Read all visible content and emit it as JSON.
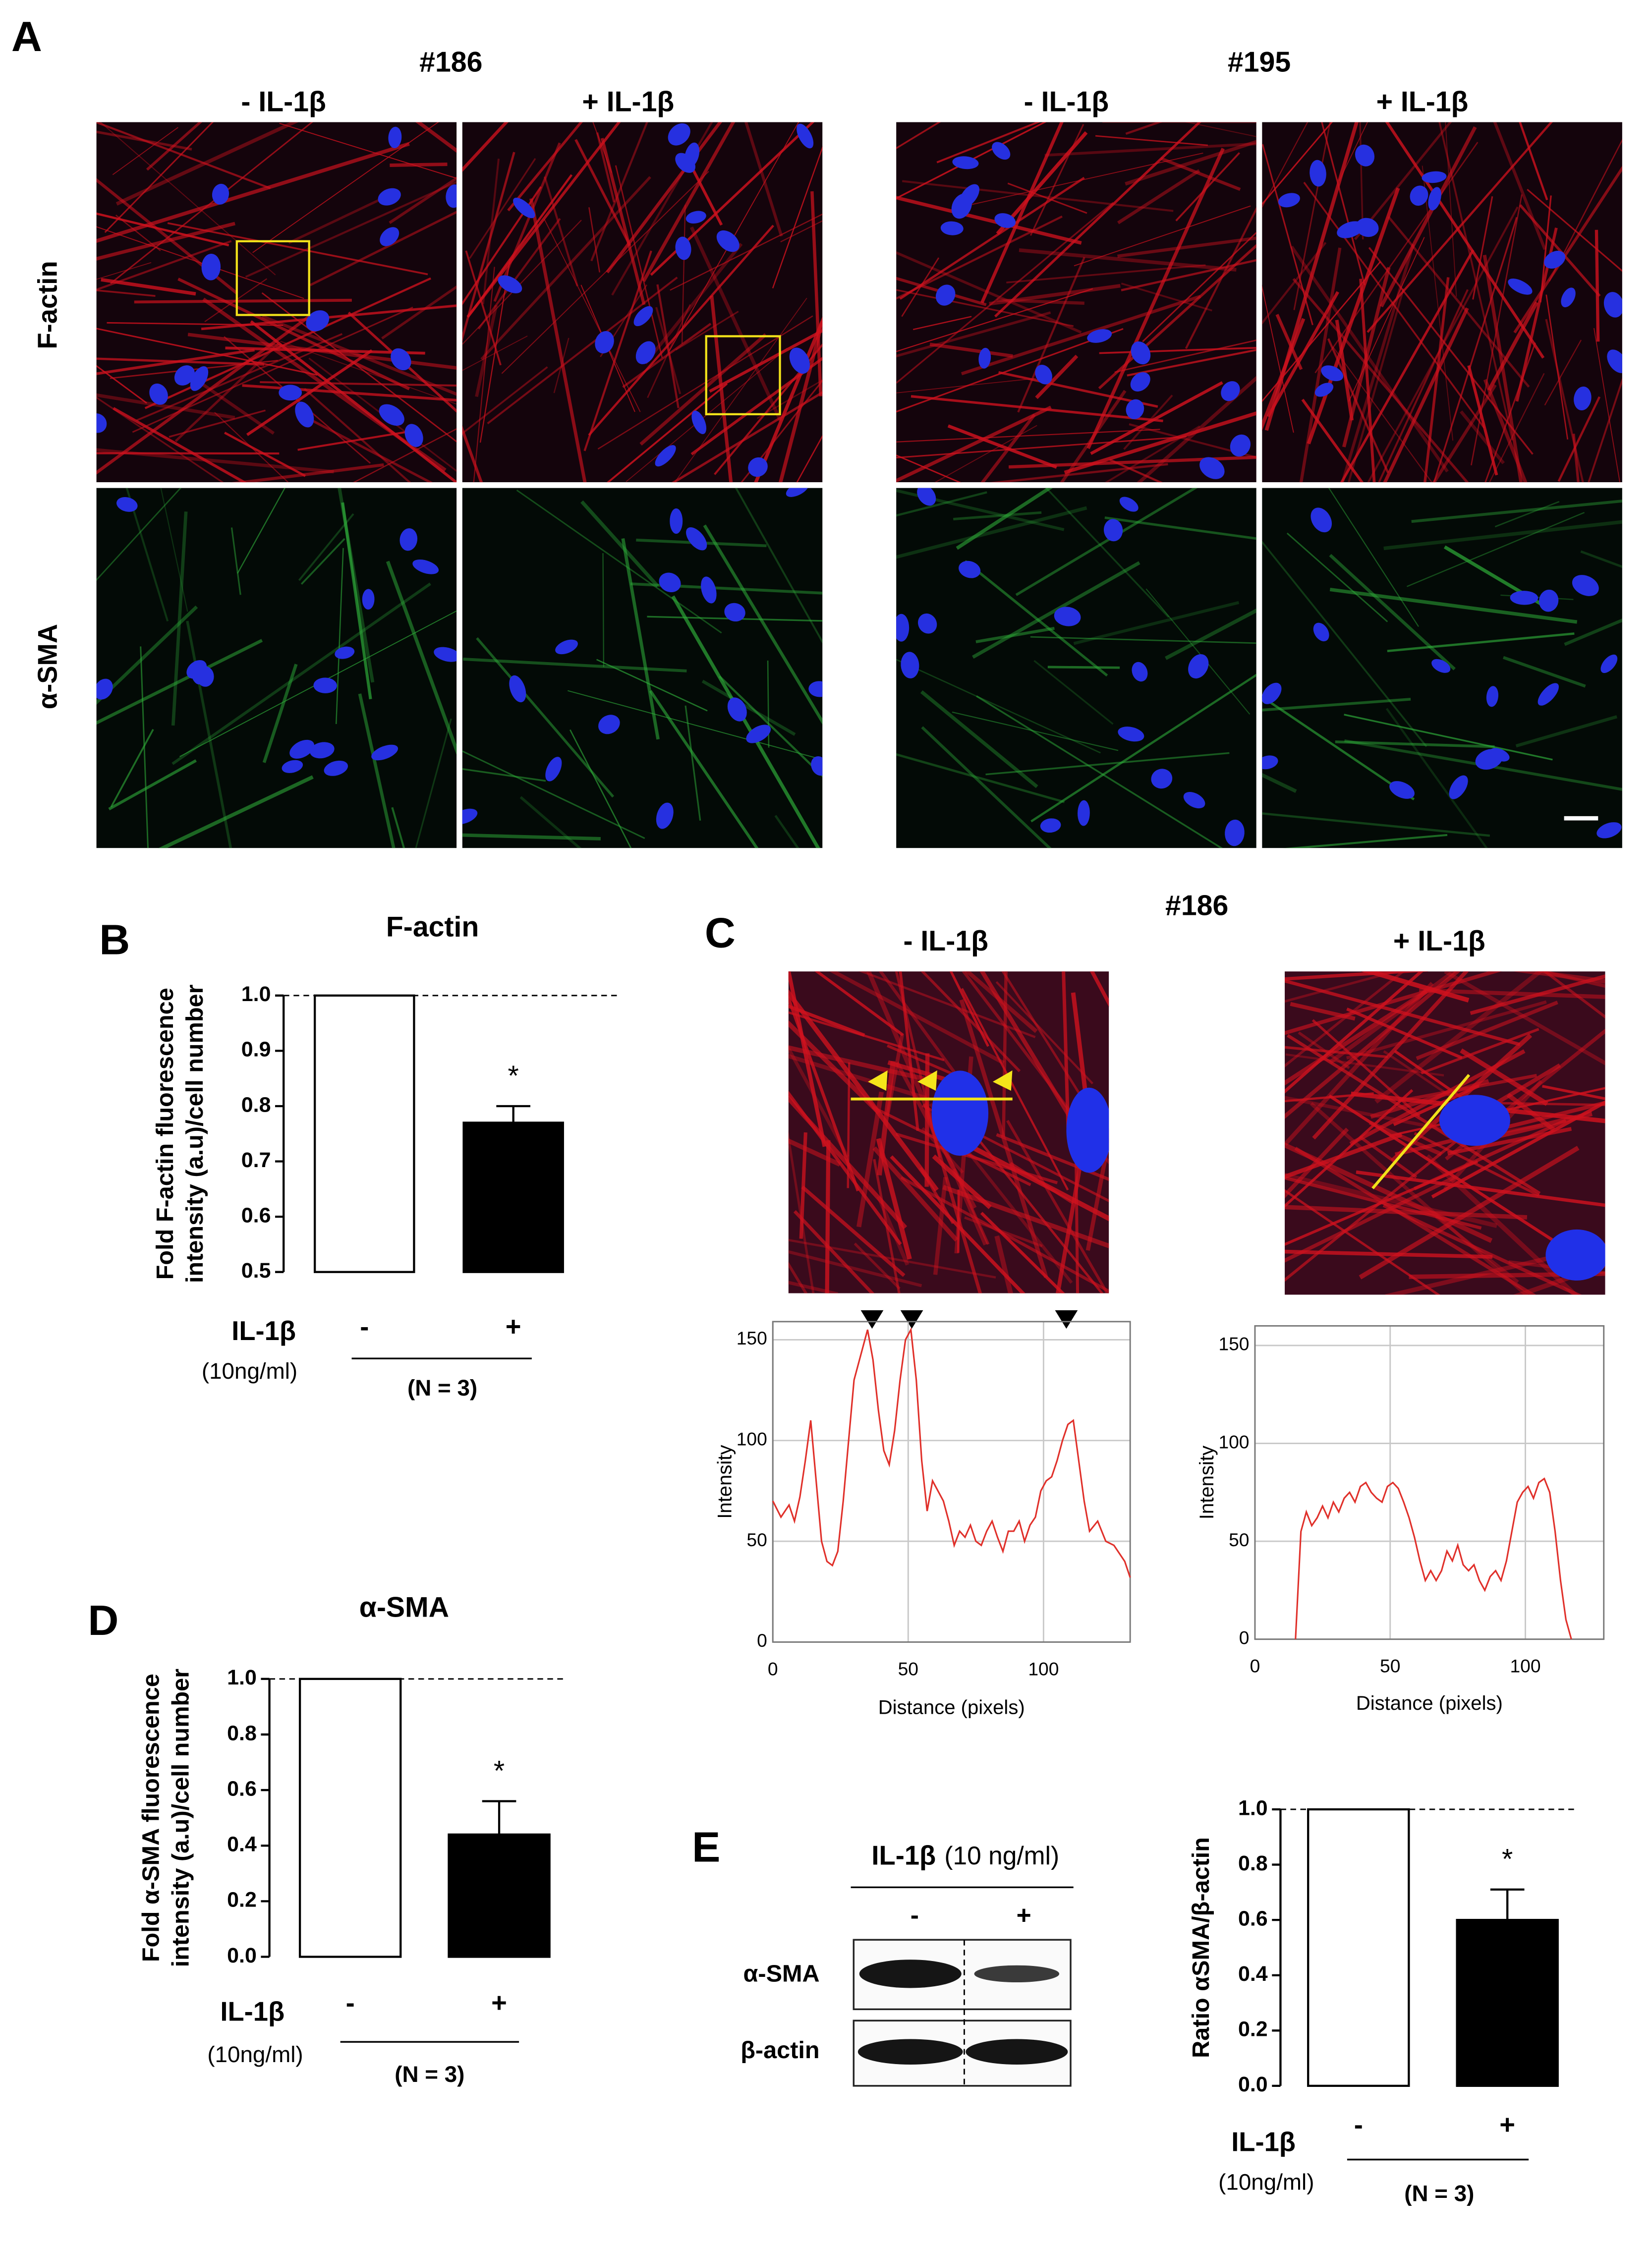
{
  "panel_a": {
    "letter": "A",
    "groups": [
      {
        "title": "#186",
        "conditions": [
          "- IL-1β",
          "+ IL-1β"
        ]
      },
      {
        "title": "#195",
        "conditions": [
          "- IL-1β",
          "+ IL-1β"
        ]
      }
    ],
    "stains": [
      "F-actin",
      "α-SMA"
    ]
  },
  "panel_c": {
    "letter": "C",
    "title": "#186",
    "conditions": [
      "- IL-1β",
      "+ IL-1β"
    ]
  },
  "panel_e_blot": {
    "letter": "E",
    "treatment": "IL-1β",
    "dose": "(10 ng/ml)",
    "lanes": [
      "-",
      "+"
    ],
    "proteins": [
      "α-SMA",
      "β-actin"
    ]
  },
  "chart_data": [
    {
      "type": "bar",
      "panel": "B",
      "title": "F-actin",
      "ylabel": [
        "Fold F-actin fluorescence",
        "intensity (a.u)/cell number"
      ],
      "categories": [
        "-",
        "+"
      ],
      "values": [
        1,
        0.77
      ],
      "errors": [
        null,
        0.03
      ],
      "significance_labels": [
        null,
        "*"
      ],
      "colors": [
        "#ffffff",
        "#000000"
      ],
      "ylim": [
        0.5,
        1
      ],
      "yticks": [
        0.5,
        0.6,
        0.7,
        0.8,
        0.9,
        {
          "value": 1,
          "label": "1.0"
        }
      ],
      "reference_line": 1,
      "treatment": "IL-1β",
      "dose": "(10ng/ml)",
      "n_label": "(N = 3)"
    },
    {
      "type": "bar",
      "panel": "D",
      "title": "α-SMA",
      "ylabel": [
        "Fold α-SMA fluorescence",
        "intensity (a.u)/cell number"
      ],
      "categories": [
        "-",
        "+"
      ],
      "values": [
        1,
        0.44
      ],
      "errors": [
        null,
        0.12
      ],
      "significance_labels": [
        null,
        "*"
      ],
      "colors": [
        "#ffffff",
        "#000000"
      ],
      "ylim": [
        0,
        1
      ],
      "yticks": [
        {
          "value": 0,
          "label": "0.0"
        },
        0.2,
        0.4,
        0.6,
        0.8,
        {
          "value": 1,
          "label": "1.0"
        }
      ],
      "reference_line": 1,
      "treatment": "IL-1β",
      "dose": "(10ng/ml)",
      "n_label": "(N = 3)"
    },
    {
      "type": "bar",
      "ylabel": [
        "Ratio αSMA/β-actin"
      ],
      "categories": [
        "-",
        "+"
      ],
      "values": [
        1,
        0.6
      ],
      "errors": [
        null,
        0.11
      ],
      "significance_labels": [
        null,
        "*"
      ],
      "colors": [
        "#ffffff",
        "#000000"
      ],
      "ylim": [
        0,
        1
      ],
      "yticks": [
        {
          "value": 0,
          "label": "0.0"
        },
        0.2,
        0.4,
        0.6,
        0.8,
        {
          "value": 1,
          "label": "1.0"
        }
      ],
      "reference_line": 1,
      "treatment": "IL-1β",
      "dose": "(10ng/ml)",
      "n_label": "(N = 3)"
    },
    {
      "type": "line",
      "xlabel": "Distance (pixels)",
      "ylabel": "Intensity",
      "x": [
        0,
        3,
        6,
        8,
        10,
        12,
        14,
        16,
        18,
        20,
        22,
        24,
        26,
        28,
        30,
        33,
        35,
        37,
        39,
        41,
        43,
        45,
        47,
        49,
        51,
        53,
        55,
        57,
        59,
        61,
        63,
        65,
        67,
        69,
        71,
        73,
        75,
        77,
        79,
        81,
        83,
        85,
        87,
        89,
        91,
        93,
        95,
        97,
        99,
        101,
        103,
        105,
        107,
        109,
        111,
        113,
        115,
        117,
        120,
        123,
        126,
        130,
        132
      ],
      "series": [
        {
          "color": "#e0302a",
          "values": [
            70,
            62,
            68,
            60,
            72,
            90,
            110,
            80,
            50,
            40,
            38,
            45,
            70,
            100,
            130,
            145,
            155,
            140,
            115,
            95,
            88,
            105,
            130,
            150,
            155,
            130,
            90,
            65,
            80,
            75,
            70,
            60,
            48,
            55,
            52,
            58,
            50,
            48,
            55,
            60,
            52,
            45,
            55,
            55,
            60,
            50,
            58,
            62,
            75,
            80,
            82,
            90,
            100,
            108,
            110,
            90,
            70,
            55,
            60,
            50,
            48,
            40,
            32
          ]
        }
      ],
      "xlim": [
        0,
        132
      ],
      "ylim": [
        0,
        159
      ],
      "xticks": [
        0,
        50,
        100
      ],
      "yticks": [
        0,
        50,
        100,
        150
      ],
      "grid": true
    },
    {
      "type": "line",
      "xlabel": "Distance (pixels)",
      "ylabel": "Intensity",
      "x": [
        15,
        17,
        19,
        21,
        23,
        25,
        27,
        29,
        31,
        33,
        35,
        37,
        39,
        41,
        43,
        45,
        47,
        49,
        51,
        53,
        55,
        57,
        59,
        61,
        63,
        65,
        67,
        69,
        71,
        73,
        75,
        77,
        79,
        81,
        83,
        85,
        87,
        89,
        91,
        93,
        95,
        97,
        99,
        101,
        103,
        105,
        107,
        109,
        111,
        113,
        115,
        117
      ],
      "series": [
        {
          "color": "#e0302a",
          "values": [
            0,
            55,
            65,
            58,
            62,
            68,
            62,
            70,
            65,
            72,
            75,
            70,
            78,
            80,
            75,
            72,
            70,
            78,
            80,
            77,
            70,
            62,
            52,
            40,
            30,
            35,
            30,
            35,
            45,
            40,
            48,
            38,
            35,
            38,
            30,
            25,
            32,
            35,
            30,
            40,
            55,
            70,
            75,
            78,
            72,
            80,
            82,
            75,
            55,
            30,
            10,
            0
          ]
        }
      ],
      "xlim": [
        0,
        129
      ],
      "ylim": [
        0,
        160
      ],
      "xticks": [
        0,
        50,
        100
      ],
      "yticks": [
        0,
        50,
        100,
        150
      ],
      "grid": true
    }
  ]
}
